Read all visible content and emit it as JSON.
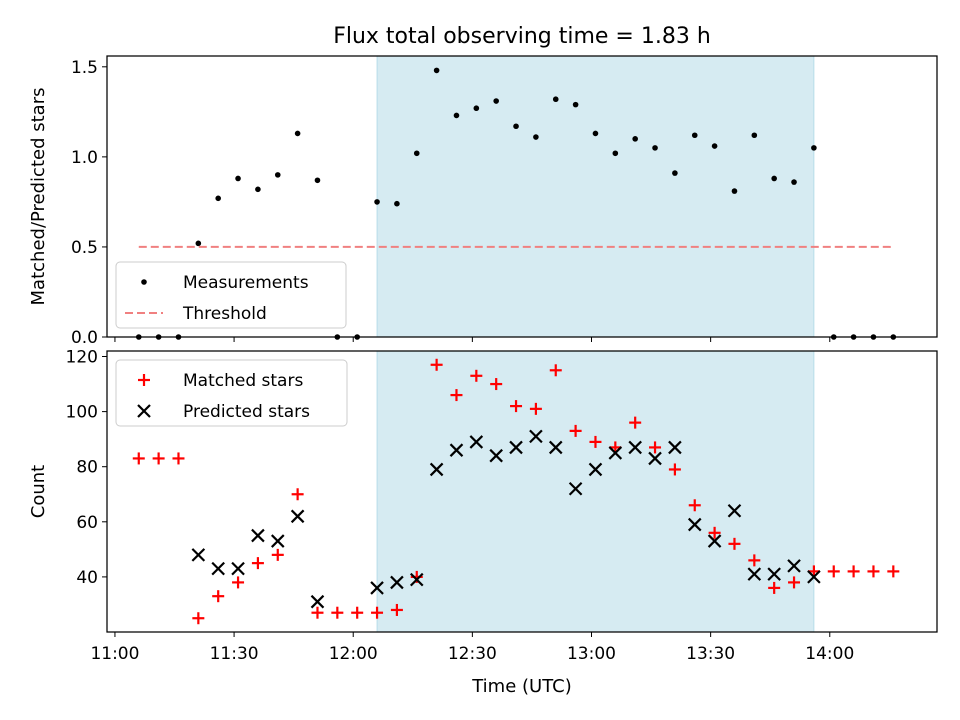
{
  "figure": {
    "title": "Flux total observing time = 1.83 h",
    "xlabel": "Time (UTC)"
  },
  "chart_data": [
    {
      "type": "scatter",
      "ylabel": "Matched/Predicted stars",
      "x_range": [
        "10:58",
        "14:27"
      ],
      "ylim": [
        0,
        1.56
      ],
      "x_ticks": [
        "11:00",
        "11:30",
        "12:00",
        "12:30",
        "13:00",
        "13:30",
        "14:00"
      ],
      "y_ticks": [
        0.0,
        0.5,
        1.0,
        1.5
      ],
      "y_tick_labels": [
        "0.0",
        "0.5",
        "1.0",
        "1.5"
      ],
      "shaded_region": {
        "x": [
          "12:06",
          "13:56"
        ],
        "color": "#add8e6"
      },
      "legend": {
        "location": "lower-left",
        "entries": [
          "Measurements",
          "Threshold"
        ]
      },
      "grid": false,
      "series": [
        {
          "name": "Measurements",
          "marker": "dot",
          "color": "#000000",
          "x": [
            "11:06",
            "11:11",
            "11:16",
            "11:21",
            "11:26",
            "11:31",
            "11:36",
            "11:41",
            "11:46",
            "11:51",
            "11:56",
            "12:01",
            "12:06",
            "12:11",
            "12:16",
            "12:21",
            "12:26",
            "12:31",
            "12:36",
            "12:41",
            "12:46",
            "12:51",
            "12:56",
            "13:01",
            "13:06",
            "13:11",
            "13:16",
            "13:21",
            "13:26",
            "13:31",
            "13:36",
            "13:41",
            "13:46",
            "13:51",
            "13:56",
            "14:01",
            "14:06",
            "14:11",
            "14:16"
          ],
          "y": [
            0,
            0,
            0,
            0.52,
            0.77,
            0.88,
            0.82,
            0.9,
            1.13,
            0.87,
            0,
            0,
            0.75,
            0.74,
            1.02,
            1.48,
            1.23,
            1.27,
            1.31,
            1.17,
            1.11,
            1.32,
            1.29,
            1.13,
            1.02,
            1.1,
            1.05,
            0.91,
            1.12,
            1.06,
            0.81,
            1.12,
            0.88,
            0.86,
            1.05,
            0,
            0,
            0,
            0
          ]
        },
        {
          "name": "Threshold",
          "style": "dashed",
          "color": "#f08080",
          "x": [
            "11:06",
            "14:16"
          ],
          "y": [
            0.5,
            0.5
          ]
        }
      ]
    },
    {
      "type": "scatter",
      "ylabel": "Count",
      "x_range": [
        "10:58",
        "14:27"
      ],
      "ylim": [
        20,
        122
      ],
      "x_ticks": [
        "11:00",
        "11:30",
        "12:00",
        "12:30",
        "13:00",
        "13:30",
        "14:00"
      ],
      "y_ticks": [
        40,
        60,
        80,
        100,
        120
      ],
      "y_tick_labels": [
        "40",
        "60",
        "80",
        "100",
        "120"
      ],
      "shaded_region": {
        "x": [
          "12:06",
          "13:56"
        ],
        "color": "#add8e6"
      },
      "legend": {
        "location": "upper-left",
        "entries": [
          "Matched stars",
          "Predicted stars"
        ]
      },
      "grid": false,
      "series": [
        {
          "name": "Matched stars",
          "marker": "plus",
          "color": "#ff0000",
          "x": [
            "11:06",
            "11:11",
            "11:16",
            "11:21",
            "11:26",
            "11:31",
            "11:36",
            "11:41",
            "11:46",
            "11:51",
            "11:56",
            "12:01",
            "12:06",
            "12:11",
            "12:16",
            "12:21",
            "12:26",
            "12:31",
            "12:36",
            "12:41",
            "12:46",
            "12:51",
            "12:56",
            "13:01",
            "13:06",
            "13:11",
            "13:16",
            "13:21",
            "13:26",
            "13:31",
            "13:36",
            "13:41",
            "13:46",
            "13:51",
            "13:56",
            "14:01",
            "14:06",
            "14:11",
            "14:16"
          ],
          "y": [
            83,
            83,
            83,
            25,
            33,
            38,
            45,
            48,
            70,
            27,
            27,
            27,
            27,
            28,
            40,
            117,
            106,
            113,
            110,
            102,
            101,
            115,
            93,
            89,
            87,
            96,
            87,
            79,
            66,
            56,
            52,
            46,
            36,
            38,
            42,
            42,
            42,
            42,
            42
          ]
        },
        {
          "name": "Predicted stars",
          "marker": "x",
          "color": "#000000",
          "x": [
            "11:21",
            "11:26",
            "11:31",
            "11:36",
            "11:41",
            "11:46",
            "11:51",
            "12:06",
            "12:11",
            "12:16",
            "12:21",
            "12:26",
            "12:31",
            "12:36",
            "12:41",
            "12:46",
            "12:51",
            "12:56",
            "13:01",
            "13:06",
            "13:11",
            "13:16",
            "13:21",
            "13:26",
            "13:31",
            "13:36",
            "13:41",
            "13:46",
            "13:51",
            "13:56"
          ],
          "y": [
            48,
            43,
            43,
            55,
            53,
            62,
            31,
            36,
            38,
            39,
            79,
            86,
            89,
            84,
            87,
            91,
            87,
            72,
            79,
            85,
            87,
            83,
            87,
            59,
            53,
            64,
            41,
            41,
            44,
            40
          ]
        }
      ]
    }
  ]
}
